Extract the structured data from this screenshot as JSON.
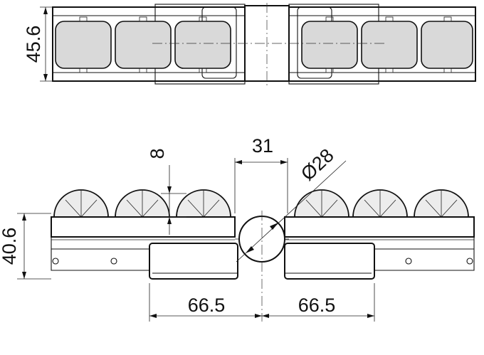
{
  "drawing": {
    "dimensions": {
      "height_top": "45.6",
      "hub_offset": "8",
      "hub_width": "31",
      "hub_diameter": "Ø28",
      "height_side": "40.6",
      "left_length": "66.5",
      "right_length": "66.5"
    }
  },
  "colors": {
    "line": "#111111",
    "roller_fill": "#d9d9d9",
    "background": "#ffffff"
  }
}
